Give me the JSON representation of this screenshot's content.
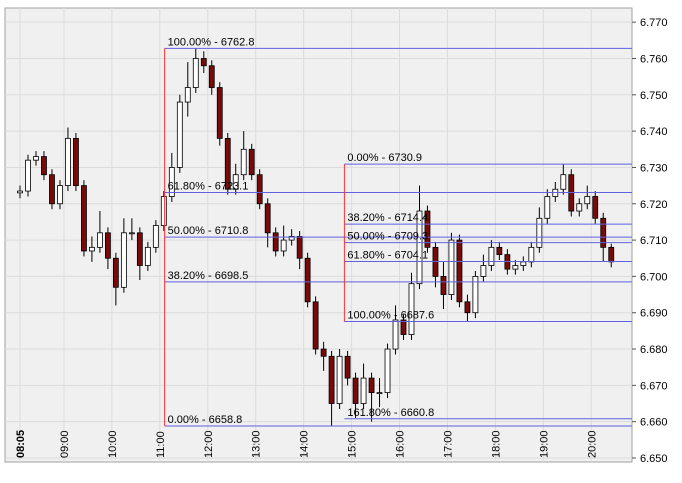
{
  "chart_data": {
    "type": "candlestick",
    "x": [
      8.083,
      8.25,
      8.417,
      8.583,
      8.75,
      8.917,
      9.083,
      9.25,
      9.417,
      9.583,
      9.75,
      9.917,
      10.083,
      10.25,
      10.417,
      10.583,
      10.75,
      10.917,
      11.083,
      11.25,
      11.417,
      11.583,
      11.75,
      11.917,
      12.083,
      12.25,
      12.417,
      12.583,
      12.75,
      12.917,
      13.083,
      13.25,
      13.417,
      13.583,
      13.75,
      13.917,
      14.083,
      14.25,
      14.417,
      14.583,
      14.75,
      14.917,
      15.083,
      15.25,
      15.417,
      15.583,
      15.75,
      15.917,
      16.083,
      16.25,
      16.417,
      16.583,
      16.75,
      16.917,
      17.083,
      17.25,
      17.417,
      17.583,
      17.75,
      17.917,
      18.083,
      18.25,
      18.417,
      18.583,
      18.75,
      18.917,
      19.083,
      19.25,
      19.417,
      19.583,
      19.75,
      19.917,
      20.083,
      20.25,
      20.417
    ],
    "open": [
      6.723,
      6.7235,
      6.732,
      6.733,
      6.728,
      6.72,
      6.725,
      6.738,
      6.725,
      6.707,
      6.708,
      6.712,
      6.705,
      6.697,
      6.712,
      6.712,
      6.703,
      6.708,
      6.714,
      6.722,
      6.73,
      6.748,
      6.752,
      6.76,
      6.758,
      6.752,
      6.738,
      6.724,
      6.728,
      6.735,
      6.728,
      6.72,
      6.712,
      6.707,
      6.71,
      6.711,
      6.705,
      6.693,
      6.68,
      6.678,
      6.665,
      6.678,
      6.672,
      6.665,
      6.672,
      6.668,
      6.668,
      6.68,
      6.688,
      6.684,
      6.698,
      6.718,
      6.708,
      6.7,
      6.695,
      6.71,
      6.693,
      6.69,
      6.7,
      6.703,
      6.708,
      6.706,
      6.702,
      6.703,
      6.704,
      6.708,
      6.716,
      6.722,
      6.724,
      6.728,
      6.718,
      6.72,
      6.722,
      6.716,
      6.708
    ],
    "high": [
      6.725,
      6.7335,
      6.7345,
      6.7345,
      6.7295,
      6.7265,
      6.741,
      6.7395,
      6.7265,
      6.711,
      6.718,
      6.7135,
      6.7065,
      6.716,
      6.716,
      6.7135,
      6.7095,
      6.7155,
      6.7235,
      6.734,
      6.75,
      6.759,
      6.7628,
      6.762,
      6.7595,
      6.7535,
      6.7395,
      6.731,
      6.74,
      6.7365,
      6.7295,
      6.7215,
      6.7135,
      6.714,
      6.713,
      6.7125,
      6.7065,
      6.6945,
      6.682,
      6.6795,
      6.68,
      6.6795,
      6.6735,
      6.676,
      6.6735,
      6.672,
      6.6815,
      6.692,
      6.6895,
      6.701,
      6.725,
      6.7195,
      6.7095,
      6.704,
      6.712,
      6.7115,
      6.695,
      6.7015,
      6.706,
      6.71,
      6.7095,
      6.7075,
      6.7045,
      6.7055,
      6.7095,
      6.719,
      6.724,
      6.726,
      6.7309,
      6.7295,
      6.7215,
      6.725,
      6.7235,
      6.7175,
      6.709
    ],
    "low": [
      6.7215,
      6.722,
      6.7305,
      6.7265,
      6.7185,
      6.7185,
      6.7235,
      6.7235,
      6.7055,
      6.704,
      6.7065,
      6.702,
      6.692,
      6.6955,
      6.71,
      6.699,
      6.7015,
      6.7065,
      6.7125,
      6.7205,
      6.7285,
      6.744,
      6.7505,
      6.756,
      6.75,
      6.736,
      6.7225,
      6.7225,
      6.7265,
      6.7265,
      6.7185,
      6.708,
      6.7055,
      6.7055,
      6.7085,
      6.702,
      6.6915,
      6.6785,
      6.674,
      6.6588,
      6.6635,
      6.67,
      6.661,
      6.6635,
      6.66,
      6.664,
      6.6665,
      6.6785,
      6.6825,
      6.6825,
      6.6965,
      6.7065,
      6.697,
      6.691,
      6.6935,
      6.6915,
      6.6876,
      6.6885,
      6.6985,
      6.7015,
      6.7045,
      6.7005,
      6.7005,
      6.7015,
      6.7025,
      6.7065,
      6.7145,
      6.7205,
      6.7225,
      6.7165,
      6.7165,
      6.7185,
      6.7145,
      6.704,
      6.7025
    ],
    "close": [
      6.7235,
      6.732,
      6.733,
      6.728,
      6.72,
      6.725,
      6.738,
      6.725,
      6.707,
      6.708,
      6.712,
      6.705,
      6.697,
      6.712,
      6.712,
      6.703,
      6.708,
      6.714,
      6.722,
      6.73,
      6.748,
      6.752,
      6.76,
      6.758,
      6.752,
      6.738,
      6.724,
      6.728,
      6.735,
      6.728,
      6.72,
      6.712,
      6.707,
      6.71,
      6.711,
      6.705,
      6.693,
      6.68,
      6.678,
      6.665,
      6.678,
      6.672,
      6.665,
      6.672,
      6.668,
      6.668,
      6.68,
      6.688,
      6.684,
      6.698,
      6.718,
      6.708,
      6.7,
      6.695,
      6.71,
      6.693,
      6.69,
      6.7,
      6.703,
      6.708,
      6.706,
      6.702,
      6.703,
      6.704,
      6.708,
      6.716,
      6.722,
      6.724,
      6.728,
      6.718,
      6.72,
      6.722,
      6.716,
      6.708,
      6.704
    ],
    "up_color": "#ffffff",
    "down_color": "#7a0a0a",
    "xlim": [
      7.77,
      20.85
    ],
    "xticks": [
      {
        "value": 8.0833,
        "label": "08:05"
      },
      {
        "value": 9,
        "label": "09:00"
      },
      {
        "value": 10,
        "label": "10:00"
      },
      {
        "value": 11,
        "label": "11:00"
      },
      {
        "value": 12,
        "label": "12:00"
      },
      {
        "value": 13,
        "label": "13:00"
      },
      {
        "value": 14,
        "label": "14:00"
      },
      {
        "value": 15,
        "label": "15:00"
      },
      {
        "value": 16,
        "label": "16:00"
      },
      {
        "value": 17,
        "label": "17:00"
      },
      {
        "value": 18,
        "label": "18:00"
      },
      {
        "value": 19,
        "label": "19:00"
      },
      {
        "value": 20,
        "label": "20:00"
      }
    ],
    "ylim": [
      6.6489,
      6.7739
    ],
    "yticks": [
      {
        "value": 6.65,
        "label": "6.650"
      },
      {
        "value": 6.66,
        "label": "6.660"
      },
      {
        "value": 6.67,
        "label": "6.670"
      },
      {
        "value": 6.68,
        "label": "6.680"
      },
      {
        "value": 6.69,
        "label": "6.690"
      },
      {
        "value": 6.7,
        "label": "6.700"
      },
      {
        "value": 6.71,
        "label": "6.710"
      },
      {
        "value": 6.72,
        "label": "6.720"
      },
      {
        "value": 6.73,
        "label": "6.730"
      },
      {
        "value": 6.74,
        "label": "6.740"
      },
      {
        "value": 6.75,
        "label": "6.750"
      },
      {
        "value": 6.76,
        "label": "6.760"
      },
      {
        "value": 6.77,
        "label": "6.770"
      }
    ],
    "grid": true,
    "fibonacci": [
      {
        "start_x": 11.1,
        "anchor_color": "#ff3030",
        "level_color": "#6060e0",
        "levels": [
          {
            "value": 6.6588,
            "label": "0.00% - 6658.8"
          },
          {
            "value": 6.7628,
            "label": "100.00% - 6762.8"
          },
          {
            "value": 6.7231,
            "label": "61.80% - 6723.1"
          },
          {
            "value": 6.7108,
            "label": "50.00% - 6710.8"
          },
          {
            "value": 6.6985,
            "label": "38.20% - 6698.5"
          }
        ]
      },
      {
        "start_x": 14.85,
        "anchor_color": "#ff3030",
        "level_color": "#6060e0",
        "levels": [
          {
            "value": 6.7309,
            "label": "0.00% - 6730.9"
          },
          {
            "value": 6.6876,
            "label": "100.00% - 6687.6"
          },
          {
            "value": 6.7144,
            "label": "38.20% - 6714.4"
          },
          {
            "value": 6.7093,
            "label": "50.00% - 6709.3"
          },
          {
            "value": 6.7041,
            "label": "61.80% - 6704.1"
          },
          {
            "value": 6.6608,
            "label": "161.80% - 6660.8"
          }
        ]
      }
    ]
  }
}
